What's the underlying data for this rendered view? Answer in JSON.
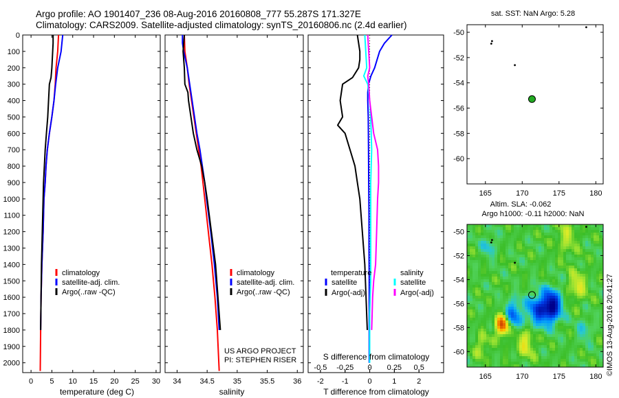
{
  "header": {
    "line1": "Argo profile: AO 1901407_236 08-Aug-2016 20160808_777 55.287S 171.327E",
    "line2": "Climatology: CARS2009. Satellite-adjusted climatology: synTS_20160806.nc (2.4d earlier)"
  },
  "map_panels": {
    "sst_title": "sat. SST: NaN Argo: 5.28",
    "sla_title_1": "Altim. SLA: -0.062",
    "sla_title_2": "Argo h1000: -0.11 h2000: NaN"
  },
  "footer": {
    "project_line1": "US ARGO PROJECT",
    "project_line2": "PI: STEPHEN RISER",
    "imos_stamp": "©IMOS 13-Aug-2016 20:41:27"
  },
  "colors": {
    "climatology": "#ff0000",
    "satellite": "#0000ff",
    "argo": "#000000",
    "satellite_salinity": "#00ffff",
    "argo_salinity": "#ff00ff",
    "argo_marker": "#22aa22"
  },
  "chart_data": [
    {
      "type": "line",
      "xlabel": "temperature (deg C)",
      "x_ticks": [
        "0",
        "5",
        "10",
        "15",
        "20",
        "25",
        "30"
      ],
      "xlim": [
        -2,
        31
      ],
      "y_ticks": [
        "0",
        "100",
        "200",
        "300",
        "400",
        "500",
        "600",
        "700",
        "800",
        "900",
        "1000",
        "1100",
        "1200",
        "1300",
        "1400",
        "1500",
        "1600",
        "1700",
        "1800",
        "1900",
        "2000"
      ],
      "ylim": [
        2060,
        0
      ],
      "legend": [
        "climatology",
        "satellite-adj. clim.",
        "Argo(..raw -QC)"
      ],
      "legend_position": "lower-center",
      "series": [
        {
          "name": "climatology",
          "color": "#ff0000",
          "depth": [
            0,
            100,
            200,
            300,
            400,
            500,
            600,
            700,
            800,
            900,
            1000,
            1200,
            1400,
            1600,
            1800,
            2050
          ],
          "values": [
            6.6,
            6.4,
            6.0,
            5.8,
            5.5,
            5.0,
            4.4,
            3.9,
            3.6,
            3.4,
            3.1,
            2.9,
            2.6,
            2.4,
            2.3,
            2.2
          ]
        },
        {
          "name": "satellite-adj. clim.",
          "color": "#0000ff",
          "depth": [
            0,
            50,
            100,
            200,
            300,
            400,
            500,
            600,
            700,
            800,
            900,
            1000,
            1200,
            1400,
            1600,
            1800
          ],
          "values": [
            7.6,
            7.4,
            7.2,
            6.4,
            5.9,
            5.5,
            5.0,
            4.4,
            3.9,
            3.6,
            3.4,
            3.1,
            2.9,
            2.6,
            2.4,
            2.3
          ]
        },
        {
          "name": "Argo(..raw -QC)",
          "color": "#000000",
          "depth": [
            0,
            50,
            100,
            200,
            260,
            300,
            400,
            500,
            600,
            700,
            800,
            900,
            1000,
            1200,
            1400,
            1600,
            1800
          ],
          "values": [
            5.3,
            5.3,
            5.2,
            5.0,
            4.8,
            4.4,
            4.2,
            4.0,
            3.7,
            3.4,
            3.2,
            3.0,
            2.9,
            2.7,
            2.5,
            2.4,
            2.3
          ]
        }
      ]
    },
    {
      "type": "line",
      "xlabel": "salinity",
      "x_ticks": [
        "34",
        "34.5",
        "35",
        "35.5",
        "36"
      ],
      "xlim": [
        33.8,
        36.1
      ],
      "legend": [
        "climatology",
        "satellite-adj. clim.",
        "Argo(..raw -QC)"
      ],
      "legend_position": "lower-center",
      "series": [
        {
          "name": "climatology",
          "color": "#ff0000",
          "depth": [
            0,
            100,
            200,
            300,
            400,
            500,
            600,
            700,
            800,
            900,
            1000,
            1200,
            1400,
            1600,
            1800,
            2050
          ],
          "values": [
            34.12,
            34.13,
            34.17,
            34.2,
            34.24,
            34.28,
            34.32,
            34.36,
            34.4,
            34.43,
            34.46,
            34.52,
            34.58,
            34.63,
            34.67,
            34.7
          ]
        },
        {
          "name": "satellite-adj. clim.",
          "color": "#0000ff",
          "depth": [
            0,
            50,
            100,
            200,
            300,
            400,
            500,
            600,
            700,
            800,
            900,
            1000,
            1200,
            1400,
            1600,
            1800
          ],
          "values": [
            34.09,
            34.09,
            34.11,
            34.17,
            34.21,
            34.25,
            34.29,
            34.33,
            34.38,
            34.42,
            34.46,
            34.49,
            34.56,
            34.62,
            34.67,
            34.7
          ]
        },
        {
          "name": "Argo(..raw -QC)",
          "color": "#000000",
          "depth": [
            0,
            50,
            100,
            200,
            300,
            350,
            400,
            500,
            600,
            700,
            800,
            900,
            1000,
            1200,
            1400,
            1600,
            1800
          ],
          "values": [
            34.12,
            34.11,
            34.1,
            34.12,
            34.13,
            34.18,
            34.19,
            34.23,
            34.27,
            34.33,
            34.41,
            34.46,
            34.5,
            34.57,
            34.64,
            34.68,
            34.72
          ]
        }
      ]
    },
    {
      "type": "line",
      "xlabel": "T difference from climatology",
      "x_ticks": [
        "-2",
        "-1",
        "0",
        "1",
        "2"
      ],
      "xlim": [
        -2.5,
        3.0
      ],
      "xlabel_top": "S difference from climatology",
      "x_ticks_top": [
        "-0.5",
        "-0.25",
        "0",
        "0.25",
        "0.5"
      ],
      "legend_temperature_title": "temperature",
      "legend_salinity_title": "salinity",
      "legend_temperature": [
        "satellite",
        "Argo(-adj)"
      ],
      "legend_salinity": [
        "satellite",
        "Argo(-adj)"
      ],
      "series": [
        {
          "name": "satellite",
          "group": "temperature",
          "color": "#0000ff",
          "depth": [
            0,
            50,
            100,
            150,
            200,
            250,
            300,
            350,
            400,
            500,
            700,
            900,
            1100,
            1300,
            1500,
            1700,
            1900,
            2000
          ],
          "values": [
            0.9,
            0.6,
            0.4,
            0.3,
            0.2,
            0.05,
            -0.05,
            -0.08,
            -0.08,
            -0.06,
            -0.05,
            -0.04,
            -0.03,
            -0.03,
            -0.02,
            -0.02,
            -0.02,
            -0.02
          ]
        },
        {
          "name": "Argo(-adj)",
          "group": "temperature",
          "color": "#000000",
          "depth": [
            0,
            50,
            100,
            150,
            200,
            260,
            300,
            400,
            500,
            550,
            600,
            700,
            800,
            900,
            1000,
            1100,
            1200,
            1400,
            1600,
            1800
          ],
          "values": [
            -0.5,
            -0.45,
            -0.4,
            -0.4,
            -0.45,
            -0.7,
            -1.1,
            -1.2,
            -1.1,
            -1.3,
            -1.0,
            -0.8,
            -0.6,
            -0.5,
            -0.4,
            -0.35,
            -0.3,
            -0.2,
            -0.15,
            -0.1
          ]
        },
        {
          "name": "satellite",
          "group": "salinity",
          "color": "#00ffff",
          "depth": [
            0,
            100,
            200,
            250,
            300,
            400,
            500,
            700,
            900,
            1100,
            1300,
            1500,
            1700,
            1900,
            2000
          ],
          "values": [
            -0.05,
            -0.04,
            -0.03,
            -0.06,
            -0.02,
            0.0,
            0.01,
            0.02,
            0.01,
            0.01,
            0.01,
            0.01,
            0.0,
            0.0,
            0.0
          ]
        },
        {
          "name": "Argo(-adj)",
          "group": "salinity",
          "color": "#ff00ff",
          "depth": [
            0,
            100,
            200,
            250,
            300,
            400,
            500,
            600,
            700,
            800,
            900,
            1000,
            1200,
            1400,
            1500,
            1600,
            1800
          ],
          "values": [
            -0.02,
            -0.01,
            0.0,
            -0.02,
            -0.01,
            0.0,
            0.02,
            0.04,
            0.08,
            0.09,
            0.09,
            0.08,
            0.07,
            0.06,
            0.04,
            0.03,
            0.02
          ]
        }
      ]
    },
    {
      "type": "scatter",
      "title": "sat. SST: NaN Argo: 5.28",
      "x_ticks": [
        "165",
        "170",
        "175",
        "180"
      ],
      "xlim": [
        162.5,
        181
      ],
      "y_ticks": [
        "-50",
        "-52",
        "-54",
        "-56",
        "-58",
        "-60"
      ],
      "ylim": [
        -62,
        -49.4
      ],
      "points": [
        {
          "lon": 178.7,
          "lat": -49.6,
          "kind": "track"
        },
        {
          "lon": 165.8,
          "lat": -50.9,
          "kind": "track"
        },
        {
          "lon": 165.9,
          "lat": -50.7,
          "kind": "track"
        },
        {
          "lon": 169.0,
          "lat": -52.6,
          "kind": "track"
        },
        {
          "lon": 171.327,
          "lat": -55.287,
          "kind": "argo"
        }
      ]
    },
    {
      "type": "heatmap",
      "title": "Altim. SLA: -0.062 / Argo h1000: -0.11 h2000: NaN",
      "x_ticks": [
        "165",
        "170",
        "175",
        "180"
      ],
      "xlim": [
        162.5,
        181
      ],
      "y_ticks": [
        "-50",
        "-52",
        "-54",
        "-56",
        "-58",
        "-60"
      ],
      "ylim": [
        -61.3,
        -49.4
      ],
      "argo_position": {
        "lon": 171.327,
        "lat": -55.287
      },
      "anomalies": [
        {
          "lon": 174.0,
          "lat": -56.2,
          "strength": -1.0,
          "radius": 1.3
        },
        {
          "lon": 172.0,
          "lat": -56.6,
          "strength": -0.6,
          "radius": 1.4
        },
        {
          "lon": 168.8,
          "lat": -56.9,
          "strength": -0.55,
          "radius": 1.2
        },
        {
          "lon": 167.3,
          "lat": -57.8,
          "strength": 0.9,
          "radius": 0.9
        },
        {
          "lon": 170.5,
          "lat": -59.2,
          "strength": 0.35,
          "radius": 1.3
        },
        {
          "lon": 164.5,
          "lat": -59.5,
          "strength": 0.25,
          "radius": 1.0
        },
        {
          "lon": 177.5,
          "lat": -54.5,
          "strength": 0.35,
          "radius": 1.2
        },
        {
          "lon": 176.0,
          "lat": -50.5,
          "strength": 0.25,
          "radius": 1.4
        },
        {
          "lon": 165.5,
          "lat": -51.2,
          "strength": -0.25,
          "radius": 1.0
        },
        {
          "lon": 178.5,
          "lat": -58.2,
          "strength": -0.25,
          "radius": 1.0
        }
      ]
    }
  ]
}
